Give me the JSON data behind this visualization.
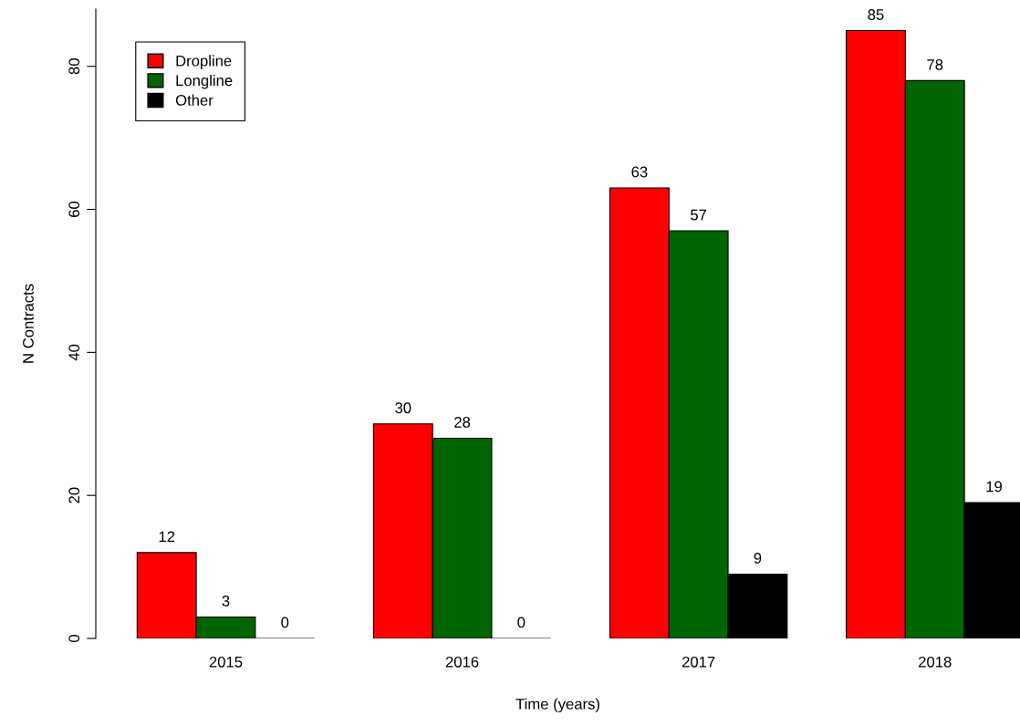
{
  "chart_data": {
    "type": "bar",
    "categories": [
      "2015",
      "2016",
      "2017",
      "2018"
    ],
    "series": [
      {
        "name": "Dropline",
        "color": "#ff0000",
        "values": [
          12,
          30,
          63,
          85
        ]
      },
      {
        "name": "Longline",
        "color": "#006400",
        "values": [
          3,
          28,
          57,
          78
        ]
      },
      {
        "name": "Other",
        "color": "#000000",
        "values": [
          0,
          0,
          9,
          19
        ]
      }
    ],
    "xlabel": "Time (years)",
    "ylabel": "N Contracts",
    "ylim": [
      0,
      88
    ],
    "yticks": [
      0,
      20,
      40,
      60,
      80
    ],
    "data_labels": true,
    "legend": "top left",
    "grid": false
  }
}
